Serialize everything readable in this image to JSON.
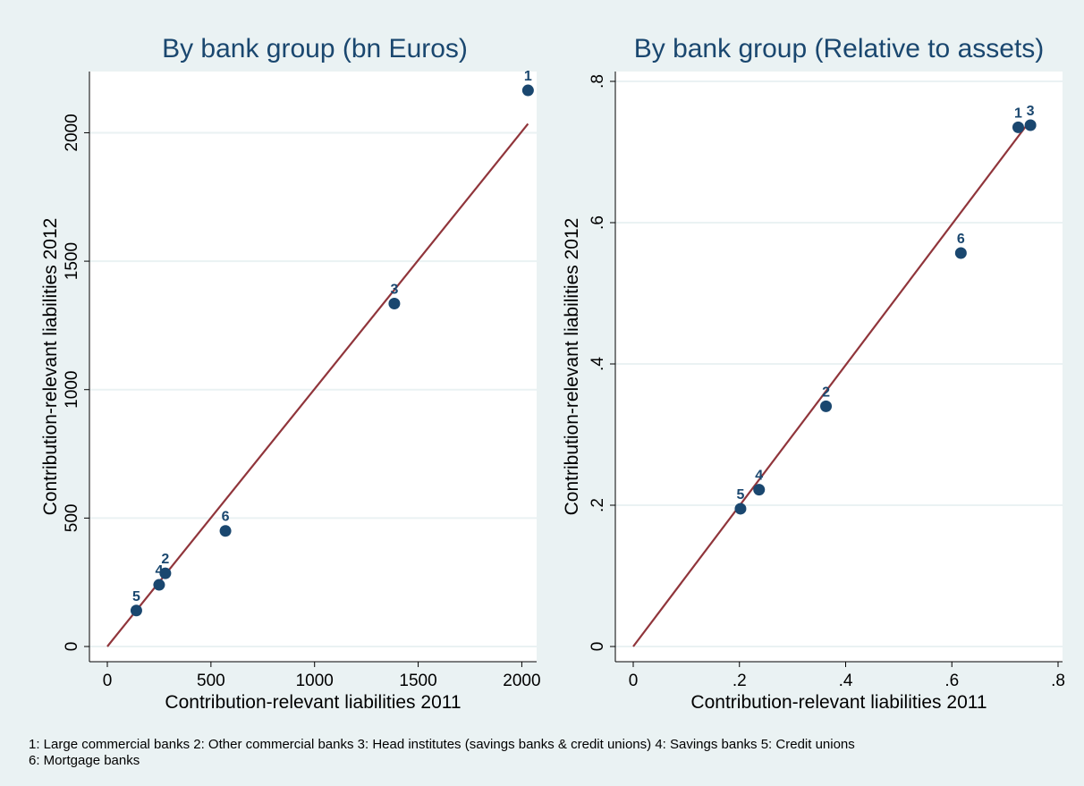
{
  "chart_data": [
    {
      "type": "scatter",
      "title": "By bank group (bn Euros)",
      "xlabel": "Contribution-relevant liabilities 2011",
      "ylabel": "Contribution-relevant liabilities 2012",
      "xlim": [
        0,
        2050
      ],
      "ylim": [
        0,
        2200
      ],
      "xticks": [
        0,
        500,
        1000,
        1500,
        2000
      ],
      "xtick_labels": [
        "0",
        "500",
        "1000",
        "1500",
        "2000"
      ],
      "yticks": [
        0,
        500,
        1000,
        1500,
        2000
      ],
      "ytick_labels": [
        "0",
        "500",
        "1000",
        "1500",
        "2000"
      ],
      "grid": "horizontal",
      "points": [
        {
          "label": "1",
          "x": 2030,
          "y": 2165
        },
        {
          "label": "2",
          "x": 280,
          "y": 285
        },
        {
          "label": "3",
          "x": 1385,
          "y": 1335
        },
        {
          "label": "4",
          "x": 250,
          "y": 240
        },
        {
          "label": "5",
          "x": 140,
          "y": 140
        },
        {
          "label": "6",
          "x": 570,
          "y": 450
        }
      ],
      "fit_line": {
        "x": [
          0,
          2030
        ],
        "y": [
          0,
          2035
        ]
      },
      "colors": {
        "marker": "#1a476f",
        "line": "#90353b",
        "grid": "#eaf2f3"
      }
    },
    {
      "type": "scatter",
      "title": "By bank group (Relative to assets)",
      "xlabel": "Contribution-relevant liabilities 2011",
      "ylabel": "Contribution-relevant liabilities 2012",
      "xlim": [
        0,
        0.8
      ],
      "ylim": [
        0,
        0.8
      ],
      "xticks": [
        0,
        0.2,
        0.4,
        0.6,
        0.8
      ],
      "xtick_labels": [
        "0",
        ".2",
        ".4",
        ".6",
        ".8"
      ],
      "yticks": [
        0,
        0.2,
        0.4,
        0.6,
        0.8
      ],
      "ytick_labels": [
        "0",
        ".2",
        ".4",
        ".6",
        ".8"
      ],
      "grid": "horizontal",
      "points": [
        {
          "label": "1",
          "x": 0.725,
          "y": 0.735
        },
        {
          "label": "2",
          "x": 0.363,
          "y": 0.34
        },
        {
          "label": "3",
          "x": 0.748,
          "y": 0.738
        },
        {
          "label": "4",
          "x": 0.237,
          "y": 0.222
        },
        {
          "label": "5",
          "x": 0.202,
          "y": 0.195
        },
        {
          "label": "6",
          "x": 0.617,
          "y": 0.557
        }
      ],
      "fit_line": {
        "x": [
          0,
          0.748
        ],
        "y": [
          0,
          0.745
        ]
      },
      "colors": {
        "marker": "#1a476f",
        "line": "#90353b",
        "grid": "#eaf2f3"
      }
    }
  ],
  "footnote": {
    "line1": "1: Large commercial banks 2: Other commercial banks 3: Head institutes (savings banks & credit unions) 4: Savings banks 5: Credit unions",
    "line2": "6: Mortgage banks"
  }
}
